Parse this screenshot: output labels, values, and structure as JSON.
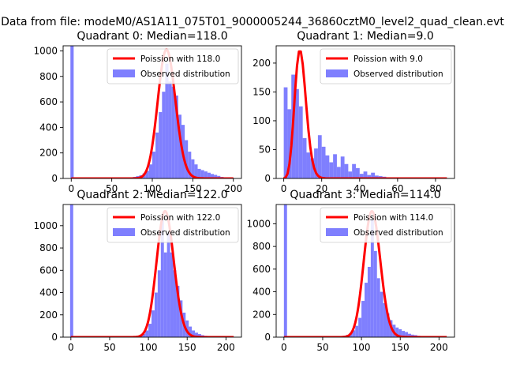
{
  "figure": {
    "title": "Data from file: modeM0/AS1A11_075T01_9000005244_36860cztM0_level2_quad_clean.evt"
  },
  "colors": {
    "histogram": "#7f7ffe",
    "poisson_line": "#ff0000",
    "axes": "#000000",
    "legend_border": "#cccccc"
  },
  "chart_data": [
    {
      "type": "bar",
      "subtype": "histogram-with-poisson-fit",
      "quadrant": 0,
      "title": "Quadrant 0: Median=118.0",
      "xlim": [
        -10,
        210
      ],
      "ylim": [
        0,
        1040
      ],
      "xticks": [
        0,
        50,
        100,
        150,
        200
      ],
      "yticks": [
        0,
        200,
        400,
        600,
        800,
        1000
      ],
      "legend": {
        "placement": "top-right",
        "line_label": "Poission with 118.0",
        "hist_label": "Observed distribution"
      },
      "poisson": {
        "mean": 118.0,
        "peak": 1010,
        "x_start": 0,
        "x_end": 200
      },
      "histogram": {
        "bin_width": 4,
        "bins": [
          [
            -1,
            1040
          ],
          [
            60,
            3
          ],
          [
            64,
            4
          ],
          [
            68,
            6
          ],
          [
            72,
            9
          ],
          [
            76,
            12
          ],
          [
            80,
            18
          ],
          [
            84,
            25
          ],
          [
            88,
            40
          ],
          [
            92,
            60
          ],
          [
            96,
            110
          ],
          [
            100,
            210
          ],
          [
            104,
            360
          ],
          [
            108,
            520
          ],
          [
            112,
            680
          ],
          [
            116,
            900
          ],
          [
            120,
            760
          ],
          [
            124,
            720
          ],
          [
            128,
            650
          ],
          [
            132,
            500
          ],
          [
            136,
            420
          ],
          [
            140,
            300
          ],
          [
            144,
            210
          ],
          [
            148,
            150
          ],
          [
            152,
            110
          ],
          [
            156,
            75
          ],
          [
            160,
            65
          ],
          [
            164,
            55
          ],
          [
            168,
            45
          ],
          [
            172,
            35
          ],
          [
            176,
            28
          ],
          [
            180,
            20
          ],
          [
            184,
            12
          ],
          [
            188,
            8
          ],
          [
            192,
            5
          ],
          [
            196,
            3
          ]
        ]
      }
    },
    {
      "type": "bar",
      "subtype": "histogram-with-poisson-fit",
      "quadrant": 1,
      "title": "Quadrant 1: Median=9.0",
      "xlim": [
        -4,
        90
      ],
      "ylim": [
        0,
        230
      ],
      "xticks": [
        0,
        20,
        40,
        60,
        80
      ],
      "yticks": [
        0,
        50,
        100,
        150,
        200
      ],
      "legend": {
        "placement": "top-right",
        "line_label": "Poission with 9.0",
        "hist_label": "Observed distribution"
      },
      "poisson": {
        "mean": 9.0,
        "peak": 220,
        "x_start": 0,
        "x_end": 86
      },
      "histogram": {
        "bin_width": 2,
        "bins": [
          [
            0,
            158
          ],
          [
            2,
            120
          ],
          [
            4,
            180
          ],
          [
            6,
            155
          ],
          [
            8,
            125
          ],
          [
            10,
            70
          ],
          [
            12,
            45
          ],
          [
            14,
            35
          ],
          [
            16,
            52
          ],
          [
            18,
            75
          ],
          [
            20,
            55
          ],
          [
            22,
            40
          ],
          [
            24,
            28
          ],
          [
            26,
            42
          ],
          [
            28,
            20
          ],
          [
            30,
            38
          ],
          [
            32,
            25
          ],
          [
            34,
            12
          ],
          [
            36,
            25
          ],
          [
            38,
            18
          ],
          [
            40,
            8
          ],
          [
            42,
            12
          ],
          [
            44,
            6
          ],
          [
            46,
            10
          ],
          [
            48,
            5
          ],
          [
            50,
            4
          ],
          [
            52,
            3
          ],
          [
            54,
            2
          ]
        ]
      }
    },
    {
      "type": "bar",
      "subtype": "histogram-with-poisson-fit",
      "quadrant": 2,
      "title": "Quadrant 2: Median=122.0",
      "xlim": [
        -10,
        220
      ],
      "ylim": [
        0,
        1190
      ],
      "xticks": [
        0,
        50,
        100,
        150,
        200
      ],
      "yticks": [
        0,
        200,
        400,
        600,
        800,
        1000
      ],
      "legend": {
        "placement": "top-right",
        "line_label": "Poission with 122.0",
        "hist_label": "Observed distribution"
      },
      "poisson": {
        "mean": 122.0,
        "peak": 1130,
        "x_start": 0,
        "x_end": 210
      },
      "histogram": {
        "bin_width": 4,
        "bins": [
          [
            -1,
            1190
          ],
          [
            72,
            3
          ],
          [
            76,
            5
          ],
          [
            80,
            8
          ],
          [
            84,
            12
          ],
          [
            88,
            18
          ],
          [
            92,
            30
          ],
          [
            96,
            60
          ],
          [
            100,
            120
          ],
          [
            104,
            240
          ],
          [
            108,
            400
          ],
          [
            112,
            600
          ],
          [
            116,
            1050
          ],
          [
            120,
            760
          ],
          [
            124,
            940
          ],
          [
            128,
            760
          ],
          [
            132,
            600
          ],
          [
            136,
            460
          ],
          [
            140,
            330
          ],
          [
            144,
            220
          ],
          [
            148,
            150
          ],
          [
            152,
            95
          ],
          [
            156,
            60
          ],
          [
            160,
            40
          ],
          [
            164,
            28
          ],
          [
            168,
            18
          ],
          [
            172,
            12
          ],
          [
            176,
            8
          ],
          [
            180,
            5
          ]
        ]
      }
    },
    {
      "type": "bar",
      "subtype": "histogram-with-poisson-fit",
      "quadrant": 3,
      "title": "Quadrant 3: Median=114.0",
      "xlim": [
        -10,
        220
      ],
      "ylim": [
        0,
        1170
      ],
      "xticks": [
        0,
        50,
        100,
        150,
        200
      ],
      "yticks": [
        0,
        200,
        400,
        600,
        800,
        1000
      ],
      "legend": {
        "placement": "top-right",
        "line_label": "Poission with 114.0",
        "hist_label": "Observed distribution"
      },
      "poisson": {
        "mean": 114.0,
        "peak": 1110,
        "x_start": 0,
        "x_end": 210
      },
      "histogram": {
        "bin_width": 4,
        "bins": [
          [
            0,
            1170
          ],
          [
            64,
            3
          ],
          [
            68,
            5
          ],
          [
            72,
            8
          ],
          [
            76,
            12
          ],
          [
            80,
            20
          ],
          [
            84,
            35
          ],
          [
            88,
            60
          ],
          [
            92,
            100
          ],
          [
            96,
            170
          ],
          [
            100,
            320
          ],
          [
            104,
            480
          ],
          [
            108,
            620
          ],
          [
            112,
            1040
          ],
          [
            116,
            760
          ],
          [
            120,
            520
          ],
          [
            124,
            400
          ],
          [
            128,
            300
          ],
          [
            132,
            210
          ],
          [
            136,
            150
          ],
          [
            140,
            110
          ],
          [
            144,
            85
          ],
          [
            148,
            70
          ],
          [
            152,
            55
          ],
          [
            156,
            45
          ],
          [
            160,
            30
          ],
          [
            164,
            22
          ],
          [
            168,
            18
          ],
          [
            172,
            12
          ],
          [
            176,
            8
          ],
          [
            180,
            5
          ]
        ]
      }
    }
  ]
}
